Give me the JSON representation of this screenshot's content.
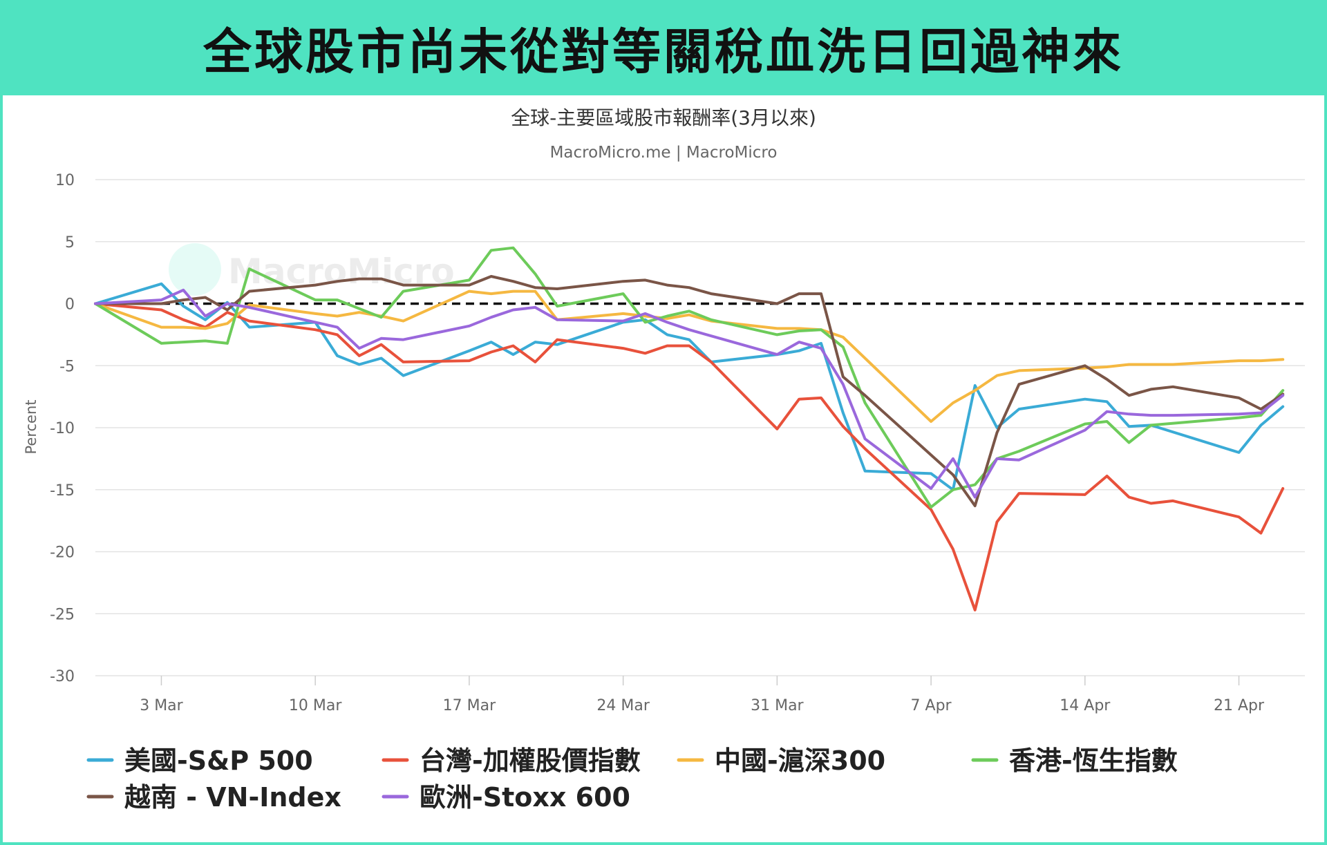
{
  "banner": {
    "title": "全球股市尚未從對等關稅血洗日回過神來"
  },
  "chart_data": {
    "type": "line",
    "title": "全球-主要區域股市報酬率(3月以來)",
    "subtitle": "MacroMicro.me | MacroMicro",
    "watermark": "MacroMicro",
    "ylabel": "Percent",
    "ylim": [
      -30,
      10
    ],
    "yticks": [
      10,
      5,
      0,
      -5,
      -10,
      -15,
      -20,
      -25,
      -30
    ],
    "xlim": [
      "2025-02-28",
      "2025-04-24"
    ],
    "xticks": [
      {
        "date": "2025-03-03",
        "label": "3 Mar"
      },
      {
        "date": "2025-03-10",
        "label": "10 Mar"
      },
      {
        "date": "2025-03-17",
        "label": "17 Mar"
      },
      {
        "date": "2025-03-24",
        "label": "24 Mar"
      },
      {
        "date": "2025-03-31",
        "label": "31 Mar"
      },
      {
        "date": "2025-04-07",
        "label": "7 Apr"
      },
      {
        "date": "2025-04-14",
        "label": "14 Apr"
      },
      {
        "date": "2025-04-21",
        "label": "21 Apr"
      }
    ],
    "grid": true,
    "legend_position": "bottom",
    "zero_line": "dashed",
    "series": [
      {
        "name": "美國-S&P 500",
        "color": "#3aabd6",
        "points": [
          [
            "2025-02-28",
            0
          ],
          [
            "2025-03-03",
            1.6
          ],
          [
            "2025-03-04",
            -0.2
          ],
          [
            "2025-03-05",
            -1.3
          ],
          [
            "2025-03-06",
            0.1
          ],
          [
            "2025-03-07",
            -1.9
          ],
          [
            "2025-03-10",
            -1.5
          ],
          [
            "2025-03-11",
            -4.2
          ],
          [
            "2025-03-12",
            -4.9
          ],
          [
            "2025-03-13",
            -4.4
          ],
          [
            "2025-03-14",
            -5.8
          ],
          [
            "2025-03-17",
            -3.8
          ],
          [
            "2025-03-18",
            -3.1
          ],
          [
            "2025-03-19",
            -4.1
          ],
          [
            "2025-03-20",
            -3.1
          ],
          [
            "2025-03-21",
            -3.3
          ],
          [
            "2025-03-24",
            -1.5
          ],
          [
            "2025-03-25",
            -1.3
          ],
          [
            "2025-03-26",
            -2.5
          ],
          [
            "2025-03-27",
            -2.9
          ],
          [
            "2025-03-28",
            -4.7
          ],
          [
            "2025-03-31",
            -4.1
          ],
          [
            "2025-04-01",
            -3.8
          ],
          [
            "2025-04-02",
            -3.2
          ],
          [
            "2025-04-03",
            -8.8
          ],
          [
            "2025-04-04",
            -13.5
          ],
          [
            "2025-04-07",
            -13.7
          ],
          [
            "2025-04-08",
            -15.0
          ],
          [
            "2025-04-09",
            -6.6
          ],
          [
            "2025-04-10",
            -10.0
          ],
          [
            "2025-04-11",
            -8.5
          ],
          [
            "2025-04-14",
            -7.7
          ],
          [
            "2025-04-15",
            -7.9
          ],
          [
            "2025-04-16",
            -9.9
          ],
          [
            "2025-04-17",
            -9.8
          ],
          [
            "2025-04-21",
            -12.0
          ],
          [
            "2025-04-22",
            -9.8
          ],
          [
            "2025-04-23",
            -8.3
          ]
        ]
      },
      {
        "name": "台灣-加權股價指數",
        "color": "#e8513b",
        "points": [
          [
            "2025-02-28",
            0
          ],
          [
            "2025-03-03",
            -0.5
          ],
          [
            "2025-03-04",
            -1.3
          ],
          [
            "2025-03-05",
            -1.9
          ],
          [
            "2025-03-06",
            -0.7
          ],
          [
            "2025-03-07",
            -1.4
          ],
          [
            "2025-03-10",
            -2.1
          ],
          [
            "2025-03-11",
            -2.5
          ],
          [
            "2025-03-12",
            -4.2
          ],
          [
            "2025-03-13",
            -3.3
          ],
          [
            "2025-03-14",
            -4.7
          ],
          [
            "2025-03-17",
            -4.6
          ],
          [
            "2025-03-18",
            -3.9
          ],
          [
            "2025-03-19",
            -3.4
          ],
          [
            "2025-03-20",
            -4.7
          ],
          [
            "2025-03-21",
            -2.9
          ],
          [
            "2025-03-24",
            -3.6
          ],
          [
            "2025-03-25",
            -4.0
          ],
          [
            "2025-03-26",
            -3.4
          ],
          [
            "2025-03-27",
            -3.4
          ],
          [
            "2025-03-28",
            -4.7
          ],
          [
            "2025-03-31",
            -10.1
          ],
          [
            "2025-04-01",
            -7.7
          ],
          [
            "2025-04-02",
            -7.6
          ],
          [
            "2025-04-03",
            -9.9
          ],
          [
            "2025-04-04",
            -11.7
          ],
          [
            "2025-04-07",
            -16.6
          ],
          [
            "2025-04-08",
            -19.8
          ],
          [
            "2025-04-09",
            -24.7
          ],
          [
            "2025-04-10",
            -17.6
          ],
          [
            "2025-04-11",
            -15.3
          ],
          [
            "2025-04-14",
            -15.4
          ],
          [
            "2025-04-15",
            -13.9
          ],
          [
            "2025-04-16",
            -15.6
          ],
          [
            "2025-04-17",
            -16.1
          ],
          [
            "2025-04-18",
            -15.9
          ],
          [
            "2025-04-21",
            -17.2
          ],
          [
            "2025-04-22",
            -18.5
          ],
          [
            "2025-04-23",
            -14.9
          ]
        ]
      },
      {
        "name": "中國-滬深300",
        "color": "#f5b841",
        "points": [
          [
            "2025-02-28",
            0
          ],
          [
            "2025-03-03",
            -1.9
          ],
          [
            "2025-03-04",
            -1.9
          ],
          [
            "2025-03-05",
            -2.0
          ],
          [
            "2025-03-06",
            -1.6
          ],
          [
            "2025-03-07",
            -0.1
          ],
          [
            "2025-03-10",
            -0.8
          ],
          [
            "2025-03-11",
            -1.0
          ],
          [
            "2025-03-12",
            -0.7
          ],
          [
            "2025-03-13",
            -1.0
          ],
          [
            "2025-03-14",
            -1.4
          ],
          [
            "2025-03-17",
            1.0
          ],
          [
            "2025-03-18",
            0.8
          ],
          [
            "2025-03-19",
            1.0
          ],
          [
            "2025-03-20",
            1.0
          ],
          [
            "2025-03-21",
            -1.3
          ],
          [
            "2025-03-24",
            -0.8
          ],
          [
            "2025-03-25",
            -1.0
          ],
          [
            "2025-03-26",
            -1.2
          ],
          [
            "2025-03-27",
            -0.9
          ],
          [
            "2025-03-28",
            -1.4
          ],
          [
            "2025-03-31",
            -2.0
          ],
          [
            "2025-04-01",
            -2.0
          ],
          [
            "2025-04-02",
            -2.1
          ],
          [
            "2025-04-03",
            -2.7
          ],
          [
            "2025-04-07",
            -9.5
          ],
          [
            "2025-04-08",
            -8.0
          ],
          [
            "2025-04-09",
            -7.0
          ],
          [
            "2025-04-10",
            -5.8
          ],
          [
            "2025-04-11",
            -5.4
          ],
          [
            "2025-04-14",
            -5.2
          ],
          [
            "2025-04-15",
            -5.1
          ],
          [
            "2025-04-16",
            -4.9
          ],
          [
            "2025-04-17",
            -4.9
          ],
          [
            "2025-04-18",
            -4.9
          ],
          [
            "2025-04-21",
            -4.6
          ],
          [
            "2025-04-22",
            -4.6
          ],
          [
            "2025-04-23",
            -4.5
          ]
        ]
      },
      {
        "name": "香港-恆生指數",
        "color": "#6dcb5a",
        "points": [
          [
            "2025-02-28",
            0
          ],
          [
            "2025-03-03",
            -3.2
          ],
          [
            "2025-03-04",
            -3.1
          ],
          [
            "2025-03-05",
            -3.0
          ],
          [
            "2025-03-06",
            -3.2
          ],
          [
            "2025-03-07",
            2.8
          ],
          [
            "2025-03-10",
            0.3
          ],
          [
            "2025-03-11",
            0.3
          ],
          [
            "2025-03-12",
            -0.4
          ],
          [
            "2025-03-13",
            -1.1
          ],
          [
            "2025-03-14",
            1.0
          ],
          [
            "2025-03-17",
            1.9
          ],
          [
            "2025-03-18",
            4.3
          ],
          [
            "2025-03-19",
            4.5
          ],
          [
            "2025-03-20",
            2.4
          ],
          [
            "2025-03-21",
            -0.2
          ],
          [
            "2025-03-24",
            0.8
          ],
          [
            "2025-03-25",
            -1.5
          ],
          [
            "2025-03-26",
            -1.0
          ],
          [
            "2025-03-27",
            -0.6
          ],
          [
            "2025-03-28",
            -1.3
          ],
          [
            "2025-03-31",
            -2.5
          ],
          [
            "2025-04-01",
            -2.2
          ],
          [
            "2025-04-02",
            -2.1
          ],
          [
            "2025-04-03",
            -3.5
          ],
          [
            "2025-04-04",
            -8.0
          ],
          [
            "2025-04-07",
            -16.4
          ],
          [
            "2025-04-08",
            -15.0
          ],
          [
            "2025-04-09",
            -14.6
          ],
          [
            "2025-04-10",
            -12.5
          ],
          [
            "2025-04-11",
            -11.9
          ],
          [
            "2025-04-14",
            -9.7
          ],
          [
            "2025-04-15",
            -9.5
          ],
          [
            "2025-04-16",
            -11.2
          ],
          [
            "2025-04-17",
            -9.8
          ],
          [
            "2025-04-21",
            -9.2
          ],
          [
            "2025-04-22",
            -9.0
          ],
          [
            "2025-04-23",
            -7.0
          ]
        ]
      },
      {
        "name": "越南 - VN-Index",
        "color": "#7a5547",
        "points": [
          [
            "2025-02-28",
            0
          ],
          [
            "2025-03-03",
            0
          ],
          [
            "2025-03-04",
            0.3
          ],
          [
            "2025-03-05",
            0.5
          ],
          [
            "2025-03-06",
            -0.5
          ],
          [
            "2025-03-07",
            1.0
          ],
          [
            "2025-03-10",
            1.5
          ],
          [
            "2025-03-11",
            1.8
          ],
          [
            "2025-03-12",
            2.0
          ],
          [
            "2025-03-13",
            2.0
          ],
          [
            "2025-03-14",
            1.5
          ],
          [
            "2025-03-17",
            1.5
          ],
          [
            "2025-03-18",
            2.2
          ],
          [
            "2025-03-19",
            1.8
          ],
          [
            "2025-03-20",
            1.3
          ],
          [
            "2025-03-21",
            1.2
          ],
          [
            "2025-03-24",
            1.8
          ],
          [
            "2025-03-25",
            1.9
          ],
          [
            "2025-03-26",
            1.5
          ],
          [
            "2025-03-27",
            1.3
          ],
          [
            "2025-03-28",
            0.8
          ],
          [
            "2025-03-31",
            0
          ],
          [
            "2025-04-01",
            0.8
          ],
          [
            "2025-04-02",
            0.8
          ],
          [
            "2025-04-03",
            -5.9
          ],
          [
            "2025-04-04",
            -7.4
          ],
          [
            "2025-04-07",
            -12.2
          ],
          [
            "2025-04-08",
            -13.8
          ],
          [
            "2025-04-09",
            -16.3
          ],
          [
            "2025-04-10",
            -10.4
          ],
          [
            "2025-04-11",
            -6.5
          ],
          [
            "2025-04-14",
            -5.0
          ],
          [
            "2025-04-15",
            -6.1
          ],
          [
            "2025-04-16",
            -7.4
          ],
          [
            "2025-04-17",
            -6.9
          ],
          [
            "2025-04-18",
            -6.7
          ],
          [
            "2025-04-21",
            -7.6
          ],
          [
            "2025-04-22",
            -8.5
          ],
          [
            "2025-04-23",
            -7.3
          ]
        ]
      },
      {
        "name": "歐洲-Stoxx 600",
        "color": "#9a68dc",
        "points": [
          [
            "2025-02-28",
            0
          ],
          [
            "2025-03-03",
            0.3
          ],
          [
            "2025-03-04",
            1.1
          ],
          [
            "2025-03-05",
            -1.0
          ],
          [
            "2025-03-06",
            0
          ],
          [
            "2025-03-07",
            -0.3
          ],
          [
            "2025-03-10",
            -1.5
          ],
          [
            "2025-03-11",
            -1.9
          ],
          [
            "2025-03-12",
            -3.6
          ],
          [
            "2025-03-13",
            -2.8
          ],
          [
            "2025-03-14",
            -2.9
          ],
          [
            "2025-03-17",
            -1.8
          ],
          [
            "2025-03-18",
            -1.1
          ],
          [
            "2025-03-19",
            -0.5
          ],
          [
            "2025-03-20",
            -0.3
          ],
          [
            "2025-03-21",
            -1.3
          ],
          [
            "2025-03-24",
            -1.4
          ],
          [
            "2025-03-25",
            -0.8
          ],
          [
            "2025-03-26",
            -1.5
          ],
          [
            "2025-03-27",
            -2.1
          ],
          [
            "2025-03-28",
            -2.6
          ],
          [
            "2025-03-31",
            -4.1
          ],
          [
            "2025-04-01",
            -3.1
          ],
          [
            "2025-04-02",
            -3.6
          ],
          [
            "2025-04-03",
            -6.5
          ],
          [
            "2025-04-04",
            -10.9
          ],
          [
            "2025-04-07",
            -14.9
          ],
          [
            "2025-04-08",
            -12.5
          ],
          [
            "2025-04-09",
            -15.6
          ],
          [
            "2025-04-10",
            -12.5
          ],
          [
            "2025-04-11",
            -12.6
          ],
          [
            "2025-04-14",
            -10.2
          ],
          [
            "2025-04-15",
            -8.7
          ],
          [
            "2025-04-16",
            -8.9
          ],
          [
            "2025-04-17",
            -9.0
          ],
          [
            "2025-04-18",
            -9.0
          ],
          [
            "2025-04-21",
            -8.9
          ],
          [
            "2025-04-22",
            -8.8
          ],
          [
            "2025-04-23",
            -7.4
          ]
        ]
      }
    ]
  }
}
